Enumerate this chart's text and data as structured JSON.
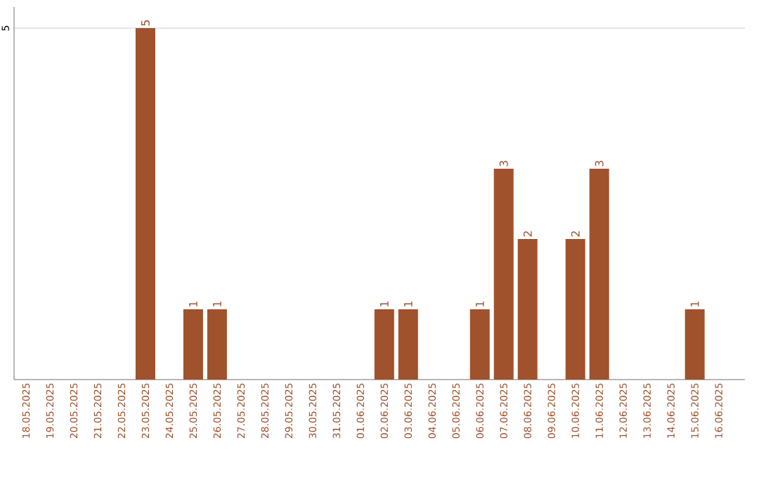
{
  "chart_data": {
    "type": "bar",
    "categories": [
      "18.05.2025",
      "19.05.2025",
      "20.05.2025",
      "21.05.2025",
      "22.05.2025",
      "23.05.2025",
      "24.05.2025",
      "25.05.2025",
      "26.05.2025",
      "27.05.2025",
      "28.05.2025",
      "29.05.2025",
      "30.05.2025",
      "31.05.2025",
      "01.06.2025",
      "02.06.2025",
      "03.06.2025",
      "04.06.2025",
      "05.06.2025",
      "06.06.2025",
      "07.06.2025",
      "08.06.2025",
      "09.06.2025",
      "10.06.2025",
      "11.06.2025",
      "12.06.2025",
      "13.06.2025",
      "14.06.2025",
      "15.06.2025",
      "16.06.2025"
    ],
    "values": [
      0,
      0,
      0,
      0,
      0,
      5,
      0,
      1,
      1,
      0,
      0,
      0,
      0,
      0,
      0,
      1,
      1,
      0,
      0,
      1,
      3,
      2,
      0,
      2,
      3,
      0,
      0,
      0,
      1,
      0
    ],
    "value_labels": [
      null,
      null,
      null,
      null,
      null,
      "5",
      null,
      "1",
      "1",
      null,
      null,
      null,
      null,
      null,
      null,
      "1",
      "1",
      null,
      null,
      "1",
      "3",
      "2",
      null,
      "2",
      "3",
      null,
      null,
      null,
      "1",
      null
    ],
    "color": "#a0522d",
    "ylim": [
      0,
      5.3
    ],
    "yticks": [
      5
    ],
    "grid": "y"
  }
}
